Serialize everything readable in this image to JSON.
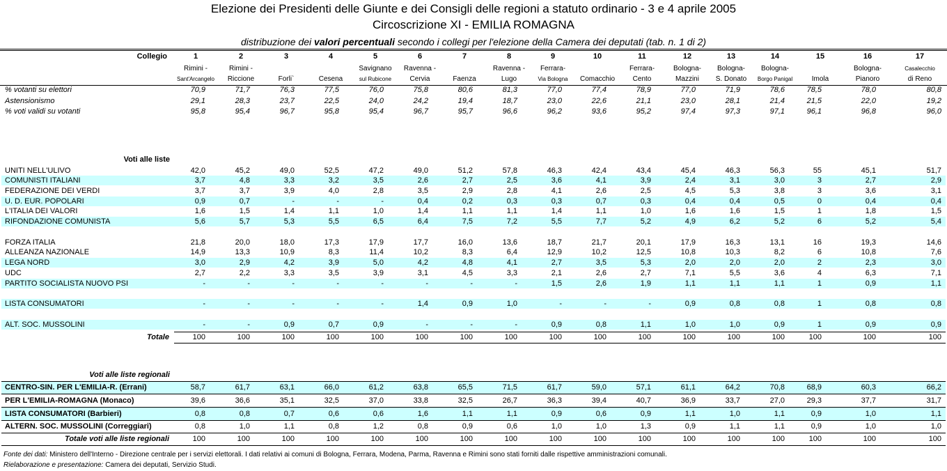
{
  "header": {
    "title": "Elezione dei Presidenti delle Giunte e dei Consigli delle regioni a statuto ordinario - 3 e 4 aprile 2005",
    "subtitle": "Circoscrizione XI - EMILIA ROMAGNA",
    "description": [
      "distribuzione dei",
      "valori percentuali",
      "secondo i collegi per l'elezione della Camera dei deputati (tab. n. 1 di 2)"
    ]
  },
  "table": {
    "collegio_label": "Collegio",
    "columns": [
      {
        "number": "1",
        "name": [
          "Rimini -",
          "Sant'Arcangelo"
        ]
      },
      {
        "number": "2",
        "name": [
          "Rimini -",
          "Riccione"
        ]
      },
      {
        "number": "3",
        "name": [
          "Forli`"
        ]
      },
      {
        "number": "4",
        "name": [
          "Cesena"
        ]
      },
      {
        "number": "5",
        "name": [
          "Savignano",
          "sul Rubicone"
        ]
      },
      {
        "number": "6",
        "name": [
          "Ravenna -",
          "Cervia"
        ]
      },
      {
        "number": "7",
        "name": [
          "Faenza"
        ]
      },
      {
        "number": "8",
        "name": [
          "Ravenna -",
          "Lugo"
        ]
      },
      {
        "number": "9",
        "name": [
          "Ferrara-",
          "Via Bologna"
        ]
      },
      {
        "number": "10",
        "name": [
          "Comacchio"
        ]
      },
      {
        "number": "11",
        "name": [
          "Ferrara-",
          "Cento"
        ]
      },
      {
        "number": "12",
        "name": [
          "Bologna-",
          "Mazzini"
        ]
      },
      {
        "number": "13",
        "name": [
          "Bologna-",
          "S. Donato"
        ]
      },
      {
        "number": "14",
        "name": [
          "Bologna-",
          "Borgo Panigal"
        ]
      },
      {
        "number": "15",
        "name": [
          "Imola"
        ]
      },
      {
        "number": "16",
        "name": [
          "Bologna-",
          "Pianoro"
        ]
      },
      {
        "number": "17",
        "name": [
          "Casalecchio",
          "di Reno"
        ]
      }
    ],
    "summary": [
      {
        "label": "% votanti su elettori",
        "values": [
          "70,9",
          "71,7",
          "76,3",
          "77,5",
          "76,0",
          "75,8",
          "80,6",
          "81,3",
          "77,0",
          "77,4",
          "78,9",
          "77,0",
          "71,9",
          "78,6",
          "78,5",
          "78,0",
          "80,8"
        ]
      },
      {
        "label": "Astensionismo",
        "values": [
          "29,1",
          "28,3",
          "23,7",
          "22,5",
          "24,0",
          "24,2",
          "19,4",
          "18,7",
          "23,0",
          "22,6",
          "21,1",
          "23,0",
          "28,1",
          "21,4",
          "21,5",
          "22,0",
          "19,2"
        ]
      },
      {
        "label": "% voti validi su votanti",
        "values": [
          "95,8",
          "95,4",
          "96,7",
          "95,8",
          "95,4",
          "96,7",
          "95,7",
          "96,6",
          "96,2",
          "93,6",
          "95,2",
          "97,4",
          "97,3",
          "97,1",
          "96,1",
          "96,8",
          "96,0"
        ]
      }
    ],
    "lists": {
      "heading": "Voti alle liste",
      "rows": [
        {
          "label": "UNITI NELL'ULIVO",
          "values": [
            "42,0",
            "45,2",
            "49,0",
            "52,5",
            "47,2",
            "49,0",
            "51,2",
            "57,8",
            "46,3",
            "42,4",
            "43,4",
            "45,4",
            "46,3",
            "56,3",
            "55",
            "45,1",
            "51,7"
          ]
        },
        {
          "label": "COMUNISTI ITALIANI",
          "values": [
            "3,7",
            "4,8",
            "3,3",
            "3,2",
            "3,5",
            "2,6",
            "2,7",
            "2,5",
            "3,6",
            "4,1",
            "3,9",
            "2,4",
            "3,1",
            "3,0",
            "3",
            "2,7",
            "2,9"
          ]
        },
        {
          "label": "FEDERAZIONE DEI VERDI",
          "values": [
            "3,7",
            "3,7",
            "3,9",
            "4,0",
            "2,8",
            "3,5",
            "2,9",
            "2,8",
            "4,1",
            "2,6",
            "2,5",
            "4,5",
            "5,3",
            "3,8",
            "3",
            "3,6",
            "3,1"
          ]
        },
        {
          "label": "U. D. EUR. POPOLARI",
          "values": [
            "0,9",
            "0,7",
            "-",
            "-",
            "-",
            "0,4",
            "0,2",
            "0,3",
            "0,3",
            "0,7",
            "0,3",
            "0,4",
            "0,4",
            "0,5",
            "0",
            "0,4",
            "0,4"
          ]
        },
        {
          "label": "L'ITALIA DEI VALORI",
          "values": [
            "1,6",
            "1,5",
            "1,4",
            "1,1",
            "1,0",
            "1,4",
            "1,1",
            "1,1",
            "1,4",
            "1,1",
            "1,0",
            "1,6",
            "1,6",
            "1,5",
            "1",
            "1,8",
            "1,5"
          ]
        },
        {
          "label": "RIFONDAZIONE COMUNISTA",
          "values": [
            "5,6",
            "5,7",
            "5,3",
            "5,5",
            "6,5",
            "6,4",
            "7,5",
            "7,2",
            "5,5",
            "7,7",
            "5,2",
            "4,9",
            "6,2",
            "5,2",
            "6",
            "5,2",
            "5,4"
          ]
        },
        {
          "label": "FORZA ITALIA",
          "values": [
            "21,8",
            "20,0",
            "18,0",
            "17,3",
            "17,9",
            "17,7",
            "16,0",
            "13,6",
            "18,7",
            "21,7",
            "20,1",
            "17,9",
            "16,3",
            "13,1",
            "16",
            "19,3",
            "14,6"
          ]
        },
        {
          "label": "ALLEANZA NAZIONALE",
          "values": [
            "14,9",
            "13,3",
            "10,9",
            "8,3",
            "11,4",
            "10,2",
            "8,3",
            "6,4",
            "12,9",
            "10,2",
            "12,5",
            "10,8",
            "10,3",
            "8,2",
            "6",
            "10,8",
            "7,6"
          ]
        },
        {
          "label": "LEGA NORD",
          "values": [
            "3,0",
            "2,9",
            "4,2",
            "3,9",
            "5,0",
            "4,2",
            "4,8",
            "4,1",
            "2,7",
            "3,5",
            "5,3",
            "2,0",
            "2,0",
            "2,0",
            "2",
            "2,3",
            "3,0"
          ]
        },
        {
          "label": "UDC",
          "values": [
            "2,7",
            "2,2",
            "3,3",
            "3,5",
            "3,9",
            "3,1",
            "4,5",
            "3,3",
            "2,1",
            "2,6",
            "2,7",
            "7,1",
            "5,5",
            "3,6",
            "4",
            "6,3",
            "7,1"
          ]
        },
        {
          "label": "PARTITO SOCIALISTA NUOVO PSI",
          "values": [
            "-",
            "-",
            "-",
            "-",
            "-",
            "-",
            "-",
            "-",
            "1,5",
            "2,6",
            "1,9",
            "1,1",
            "1,1",
            "1,1",
            "1",
            "0,9",
            "1,1"
          ]
        },
        {
          "label": "LISTA CONSUMATORI",
          "values": [
            "-",
            "-",
            "-",
            "-",
            "-",
            "1,4",
            "0,9",
            "1,0",
            "-",
            "-",
            "-",
            "0,9",
            "0,8",
            "0,8",
            "1",
            "0,8",
            "0,8"
          ]
        },
        {
          "label": "ALT. SOC. MUSSOLINI",
          "values": [
            "-",
            "-",
            "0,9",
            "0,7",
            "0,9",
            "-",
            "-",
            "-",
            "0,9",
            "0,8",
            "1,1",
            "1,0",
            "1,0",
            "0,9",
            "1",
            "0,9",
            "0,9"
          ]
        }
      ],
      "total": {
        "label": "Totale",
        "values": [
          "100",
          "100",
          "100",
          "100",
          "100",
          "100",
          "100",
          "100",
          "100",
          "100",
          "100",
          "100",
          "100",
          "100",
          "100",
          "100",
          "100"
        ]
      }
    },
    "regional": {
      "heading": "Voti alle liste regionali",
      "rows": [
        {
          "label": "CENTRO-SIN. PER L'EMILIA-R. (Errani)",
          "values": [
            "58,7",
            "61,7",
            "63,1",
            "66,0",
            "61,2",
            "63,8",
            "65,5",
            "71,5",
            "61,7",
            "59,0",
            "57,1",
            "61,1",
            "64,2",
            "70,8",
            "68,9",
            "60,3",
            "66,2"
          ]
        },
        {
          "label": "PER L'EMILIA-ROMAGNA (Monaco)",
          "values": [
            "39,6",
            "36,6",
            "35,1",
            "32,5",
            "37,0",
            "33,8",
            "32,5",
            "26,7",
            "36,3",
            "39,4",
            "40,7",
            "36,9",
            "33,7",
            "27,0",
            "29,3",
            "37,7",
            "31,7"
          ]
        },
        {
          "label": "LISTA CONSUMATORI (Barbieri)",
          "values": [
            "0,8",
            "0,8",
            "0,7",
            "0,6",
            "0,6",
            "1,6",
            "1,1",
            "1,1",
            "0,9",
            "0,6",
            "0,9",
            "1,1",
            "1,0",
            "1,1",
            "0,9",
            "1,0",
            "1,1"
          ]
        },
        {
          "label": "ALTERN. SOC. MUSSOLINI (Correggiari)",
          "values": [
            "0,8",
            "1,0",
            "1,1",
            "0,8",
            "1,2",
            "0,8",
            "0,9",
            "0,6",
            "1,0",
            "1,0",
            "1,3",
            "0,9",
            "1,1",
            "1,1",
            "0,9",
            "1,0",
            "1,0"
          ]
        }
      ],
      "total": {
        "label": "Totale voti alle liste regionali",
        "values": [
          "100",
          "100",
          "100",
          "100",
          "100",
          "100",
          "100",
          "100",
          "100",
          "100",
          "100",
          "100",
          "100",
          "100",
          "100",
          "100",
          "100"
        ]
      }
    }
  },
  "footer": [
    {
      "key": "Fonte dei dati:",
      "text": "Ministero dell'Interno - Direzione centrale per i servizi elettorali. I dati relativi ai comuni di Bologna, Ferrara, Modena, Parma, Ravenna e Rimini  sono stati forniti dalle rispettive amministrazioni comunali."
    },
    {
      "key": "Rielaborazione e presentazione:",
      "text": "Camera dei deputati, Servizio Studi."
    }
  ]
}
